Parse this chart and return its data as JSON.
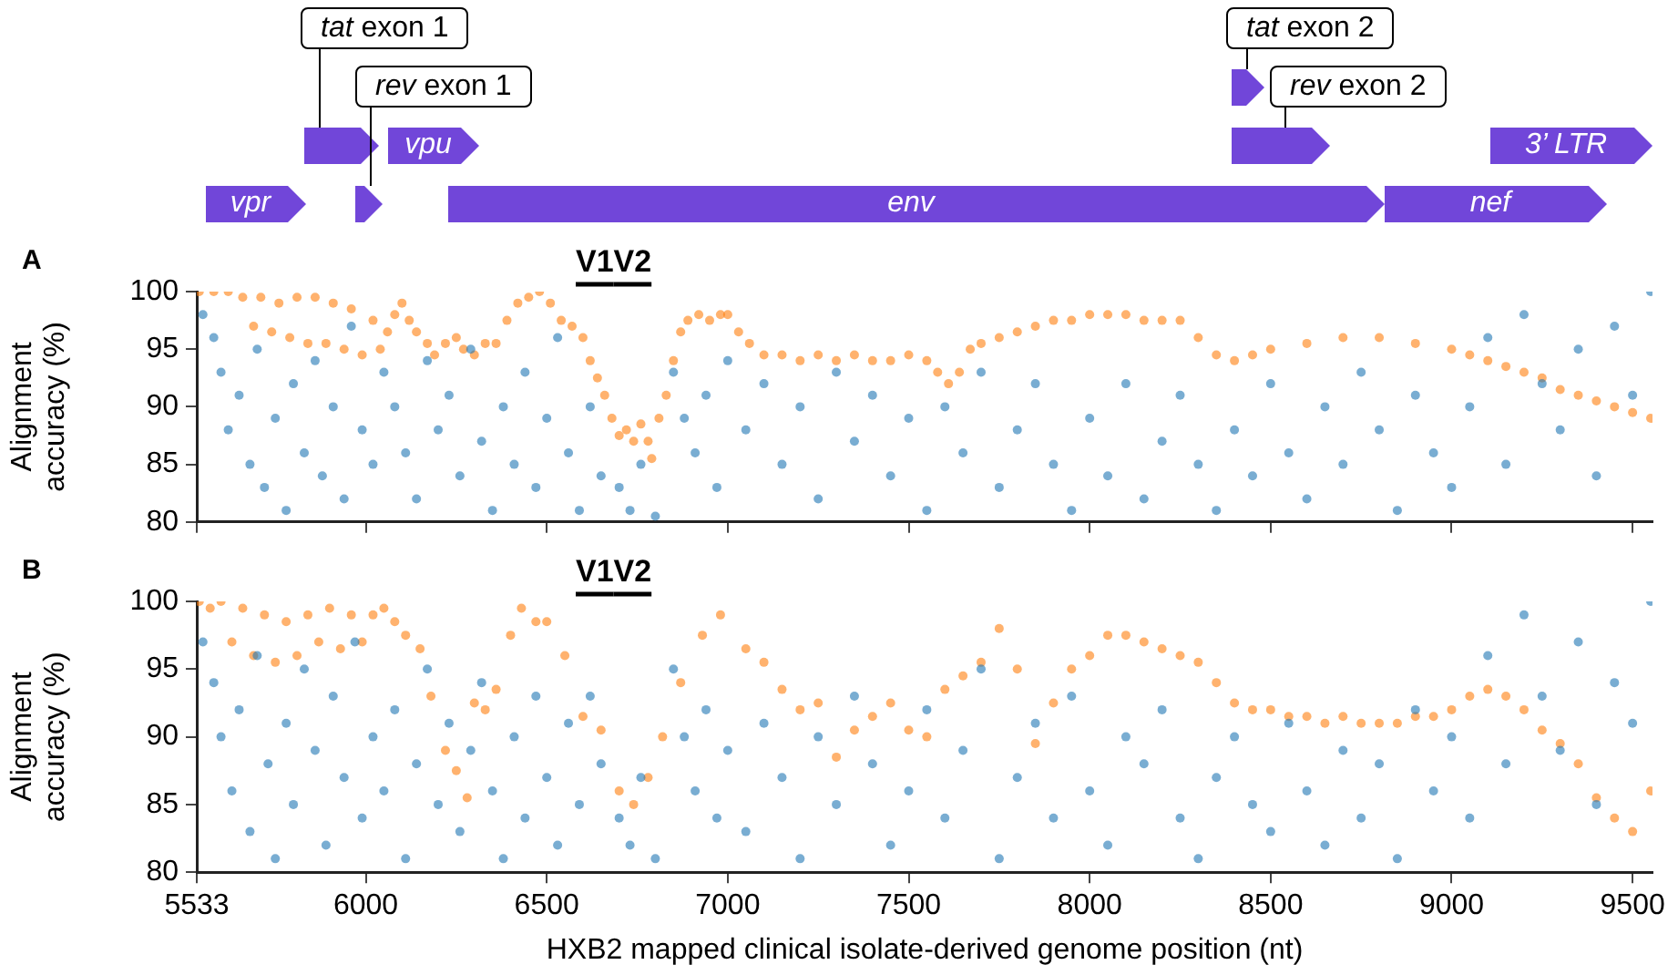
{
  "chart_data": [
    {
      "type": "other",
      "annotations": [
        "vpr",
        "tat exon 1",
        "rev exon 1",
        "vpu",
        "env",
        "tat exon 2",
        "rev exon 2",
        "nef",
        "3’ LTR"
      ]
    },
    {
      "type": "scatter",
      "title": "A",
      "ylabel": "Alignment accuracy (%)",
      "xlim": [
        5533,
        9555
      ],
      "xticks": [
        5533,
        6000,
        6500,
        7000,
        7500,
        8000,
        8500,
        9000,
        9500
      ],
      "ylim": [
        80,
        100
      ],
      "yticks": [
        80,
        85,
        90,
        95,
        100
      ],
      "tick_labels": "y",
      "grid": false,
      "legend": false,
      "marker": "circle",
      "annotations": [
        "V1",
        "V2"
      ],
      "series": [
        {
          "color": "#1f77b4",
          "x": [
            5550,
            5580,
            5600,
            5620,
            5650,
            5680,
            5700,
            5720,
            5750,
            5780,
            5800,
            5830,
            5860,
            5880,
            5910,
            5940,
            5960,
            5990,
            6020,
            6050,
            6080,
            6110,
            6140,
            6170,
            6200,
            6230,
            6260,
            6290,
            6320,
            6350,
            6380,
            6410,
            6440,
            6470,
            6500,
            6530,
            6560,
            6590,
            6620,
            6650,
            6700,
            6730,
            6760,
            6800,
            6850,
            6880,
            6910,
            6940,
            6970,
            7000,
            7050,
            7100,
            7150,
            7200,
            7250,
            7300,
            7350,
            7400,
            7450,
            7500,
            7550,
            7600,
            7650,
            7700,
            7750,
            7800,
            7850,
            7900,
            7950,
            8000,
            8050,
            8100,
            8150,
            8200,
            8250,
            8300,
            8350,
            8400,
            8450,
            8500,
            8550,
            8600,
            8650,
            8700,
            8750,
            8800,
            8850,
            8900,
            8950,
            9000,
            9050,
            9100,
            9150,
            9200,
            9250,
            9300,
            9350,
            9400,
            9450,
            9500,
            9550
          ],
          "values": [
            98,
            96,
            93,
            88,
            91,
            85,
            95,
            83,
            89,
            81,
            92,
            86,
            94,
            84,
            90,
            82,
            97,
            88,
            85,
            93,
            90,
            86,
            82,
            94,
            88,
            91,
            84,
            95,
            87,
            81,
            90,
            85,
            93,
            83,
            89,
            96,
            86,
            81,
            90,
            84,
            83,
            81,
            85,
            80.5,
            93,
            89,
            86,
            91,
            83,
            94,
            88,
            92,
            85,
            90,
            82,
            93,
            87,
            91,
            84,
            89,
            81,
            90,
            86,
            93,
            83,
            88,
            92,
            85,
            81,
            89,
            84,
            92,
            82,
            87,
            91,
            85,
            81,
            88,
            84,
            92,
            86,
            82,
            90,
            85,
            93,
            88,
            81,
            91,
            86,
            83,
            90,
            96,
            85,
            98,
            92,
            88,
            95,
            84,
            97,
            91,
            100
          ]
        },
        {
          "color": "#ff7f0e",
          "x": [
            5540,
            5580,
            5620,
            5660,
            5690,
            5710,
            5740,
            5760,
            5790,
            5810,
            5840,
            5860,
            5890,
            5910,
            5940,
            5960,
            5990,
            6020,
            6040,
            6060,
            6080,
            6100,
            6120,
            6140,
            6170,
            6190,
            6220,
            6250,
            6270,
            6300,
            6330,
            6360,
            6390,
            6420,
            6450,
            6480,
            6510,
            6540,
            6570,
            6600,
            6620,
            6640,
            6660,
            6680,
            6700,
            6720,
            6740,
            6760,
            6780,
            6790,
            6810,
            6830,
            6850,
            6870,
            6890,
            6920,
            6950,
            6980,
            7000,
            7030,
            7060,
            7100,
            7150,
            7200,
            7250,
            7300,
            7350,
            7400,
            7450,
            7500,
            7550,
            7580,
            7610,
            7640,
            7670,
            7700,
            7750,
            7800,
            7850,
            7900,
            7950,
            8000,
            8050,
            8100,
            8150,
            8200,
            8250,
            8300,
            8350,
            8400,
            8450,
            8500,
            8600,
            8700,
            8800,
            8900,
            9000,
            9050,
            9100,
            9150,
            9200,
            9250,
            9300,
            9350,
            9400,
            9450,
            9500,
            9550
          ],
          "values": [
            100,
            100,
            100,
            99.5,
            97,
            99.5,
            96.5,
            99,
            96,
            99.5,
            95.5,
            99.5,
            95.5,
            99,
            95,
            98.5,
            94.5,
            97.5,
            95,
            96.5,
            98,
            99,
            97.5,
            96.5,
            95.5,
            94.5,
            95.5,
            96,
            95,
            94.5,
            95.5,
            95.5,
            97.5,
            99,
            99.5,
            100,
            99,
            97.5,
            97,
            96,
            94,
            92.5,
            91,
            89,
            87.5,
            88,
            87,
            88.5,
            87,
            85.5,
            89,
            91,
            94,
            96.5,
            97.5,
            98,
            97.5,
            98,
            98,
            96.5,
            95.5,
            94.5,
            94.5,
            94,
            94.5,
            94,
            94.5,
            94,
            94,
            94.5,
            94,
            93,
            92,
            93,
            95,
            95.5,
            96,
            96.5,
            97,
            97.5,
            97.5,
            98,
            98,
            98,
            97.5,
            97.5,
            97.5,
            96,
            94.5,
            94,
            94.5,
            95,
            95.5,
            96,
            96,
            95.5,
            95,
            94.5,
            94,
            93.5,
            93,
            92.5,
            91.5,
            91,
            90.5,
            90,
            89.5,
            89
          ]
        }
      ]
    },
    {
      "type": "scatter",
      "title": "B",
      "ylabel": "Alignment accuracy (%)",
      "xlabel": "HXB2 mapped clinical isolate-derived genome position (nt)",
      "xlim": [
        5533,
        9555
      ],
      "xticks": [
        5533,
        6000,
        6500,
        7000,
        7500,
        8000,
        8500,
        9000,
        9500
      ],
      "ylim": [
        80,
        100
      ],
      "yticks": [
        80,
        85,
        90,
        95,
        100
      ],
      "grid": false,
      "legend": false,
      "marker": "circle",
      "annotations": [
        "V1",
        "V2"
      ],
      "series": [
        {
          "color": "#1f77b4",
          "x": [
            5550,
            5580,
            5600,
            5630,
            5650,
            5680,
            5700,
            5730,
            5750,
            5780,
            5800,
            5830,
            5860,
            5890,
            5910,
            5940,
            5970,
            5990,
            6020,
            6050,
            6080,
            6110,
            6140,
            6170,
            6200,
            6230,
            6260,
            6290,
            6320,
            6350,
            6380,
            6410,
            6440,
            6470,
            6500,
            6530,
            6560,
            6590,
            6620,
            6650,
            6700,
            6730,
            6760,
            6800,
            6850,
            6880,
            6910,
            6940,
            6970,
            7000,
            7050,
            7100,
            7150,
            7200,
            7250,
            7300,
            7350,
            7400,
            7450,
            7500,
            7550,
            7600,
            7650,
            7700,
            7750,
            7800,
            7850,
            7900,
            7950,
            8000,
            8050,
            8100,
            8150,
            8200,
            8250,
            8300,
            8350,
            8400,
            8450,
            8500,
            8550,
            8600,
            8650,
            8700,
            8750,
            8800,
            8850,
            8900,
            8950,
            9000,
            9050,
            9100,
            9150,
            9200,
            9250,
            9300,
            9350,
            9400,
            9450,
            9500,
            9550
          ],
          "values": [
            97,
            94,
            90,
            86,
            92,
            83,
            96,
            88,
            81,
            91,
            85,
            95,
            89,
            82,
            93,
            87,
            97,
            84,
            90,
            86,
            92,
            81,
            88,
            95,
            85,
            91,
            83,
            89,
            94,
            86,
            81,
            90,
            84,
            93,
            87,
            82,
            91,
            85,
            93,
            88,
            84,
            82,
            87,
            81,
            95,
            90,
            86,
            92,
            84,
            89,
            83,
            91,
            87,
            81,
            90,
            85,
            93,
            88,
            82,
            86,
            92,
            84,
            89,
            95,
            81,
            87,
            91,
            84,
            93,
            86,
            82,
            90,
            88,
            92,
            84,
            81,
            87,
            90,
            85,
            83,
            91,
            86,
            82,
            89,
            84,
            88,
            81,
            92,
            86,
            90,
            84,
            96,
            88,
            99,
            93,
            89,
            97,
            85,
            94,
            91,
            100
          ]
        },
        {
          "color": "#ff7f0e",
          "x": [
            5540,
            5570,
            5600,
            5630,
            5660,
            5690,
            5720,
            5750,
            5780,
            5810,
            5840,
            5870,
            5900,
            5930,
            5960,
            5990,
            6020,
            6050,
            6080,
            6110,
            6150,
            6180,
            6220,
            6250,
            6280,
            6300,
            6330,
            6360,
            6400,
            6430,
            6470,
            6500,
            6550,
            6600,
            6650,
            6700,
            6740,
            6780,
            6820,
            6870,
            6930,
            6980,
            7050,
            7100,
            7150,
            7200,
            7250,
            7300,
            7350,
            7400,
            7450,
            7500,
            7550,
            7600,
            7650,
            7700,
            7750,
            7800,
            7850,
            7900,
            7950,
            8000,
            8050,
            8100,
            8150,
            8200,
            8250,
            8300,
            8350,
            8400,
            8450,
            8500,
            8550,
            8600,
            8650,
            8700,
            8750,
            8800,
            8850,
            8900,
            8950,
            9000,
            9050,
            9100,
            9150,
            9200,
            9250,
            9300,
            9350,
            9400,
            9450,
            9500,
            9550
          ],
          "values": [
            100,
            99.5,
            100,
            97,
            99.5,
            96,
            99,
            95.5,
            98.5,
            96,
            99,
            97,
            99.5,
            96.5,
            99,
            97,
            99,
            99.5,
            98.5,
            97.5,
            96.5,
            93,
            89,
            87.5,
            85.5,
            92.5,
            92,
            93.5,
            97.5,
            99.5,
            98.5,
            98.5,
            96,
            91.5,
            90.5,
            86,
            85,
            87,
            90,
            94,
            97.5,
            99,
            96.5,
            95.5,
            93.5,
            92,
            92.5,
            88.5,
            90.5,
            91.5,
            92.5,
            90.5,
            90,
            93.5,
            94.5,
            95.5,
            98,
            95,
            89.5,
            92.5,
            95,
            96,
            97.5,
            97.5,
            97,
            96.5,
            96,
            95.5,
            94,
            92.5,
            92,
            92,
            91.5,
            91.5,
            91,
            91.5,
            91,
            91,
            91,
            91.5,
            91.5,
            92,
            93,
            93.5,
            93,
            92,
            90.5,
            89.5,
            88,
            85.5,
            84,
            83,
            86
          ]
        }
      ]
    }
  ]
}
